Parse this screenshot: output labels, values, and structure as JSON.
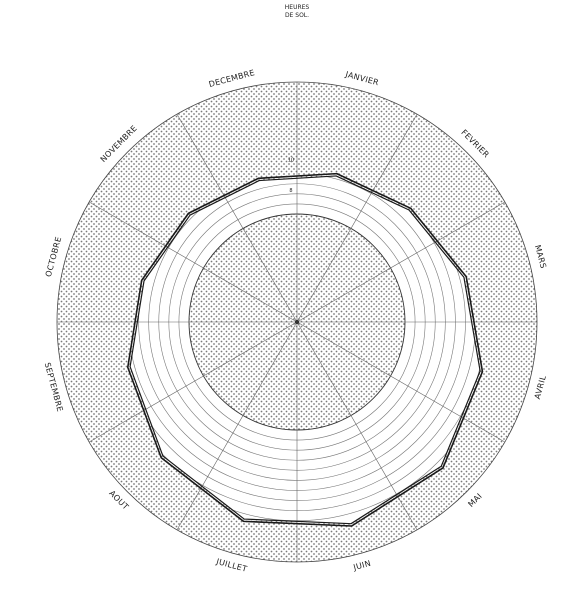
{
  "chart_data": {
    "type": "radar",
    "title": "",
    "center_label": [
      "HEURES",
      "DE SOL."
    ],
    "categories": [
      "JANVIER",
      "FEVRIER",
      "MARS",
      "AVRIL",
      "MAI",
      "JUIN",
      "JUILLET",
      "AOUT",
      "SEPTEMBRE",
      "OCTOBRE",
      "NOVEMBRE",
      "DECEMBRE"
    ],
    "series": [
      {
        "values": [
          0.63,
          0.66,
          0.72,
          0.79,
          0.85,
          0.87,
          0.85,
          0.79,
          0.72,
          0.66,
          0.63,
          0.61
        ]
      },
      {
        "values": [
          0.64,
          0.67,
          0.73,
          0.8,
          0.86,
          0.88,
          0.86,
          0.8,
          0.73,
          0.67,
          0.64,
          0.62
        ]
      }
    ],
    "inner_dotted_radius": 0.45,
    "outer_dotted_radius": 1.0,
    "ring_count": 10,
    "ring_labels": [
      "8",
      "10"
    ],
    "grid": true,
    "colors": {
      "line": "#1a1a1a",
      "grid": "#666666",
      "dots": "#7a7a7a"
    }
  }
}
